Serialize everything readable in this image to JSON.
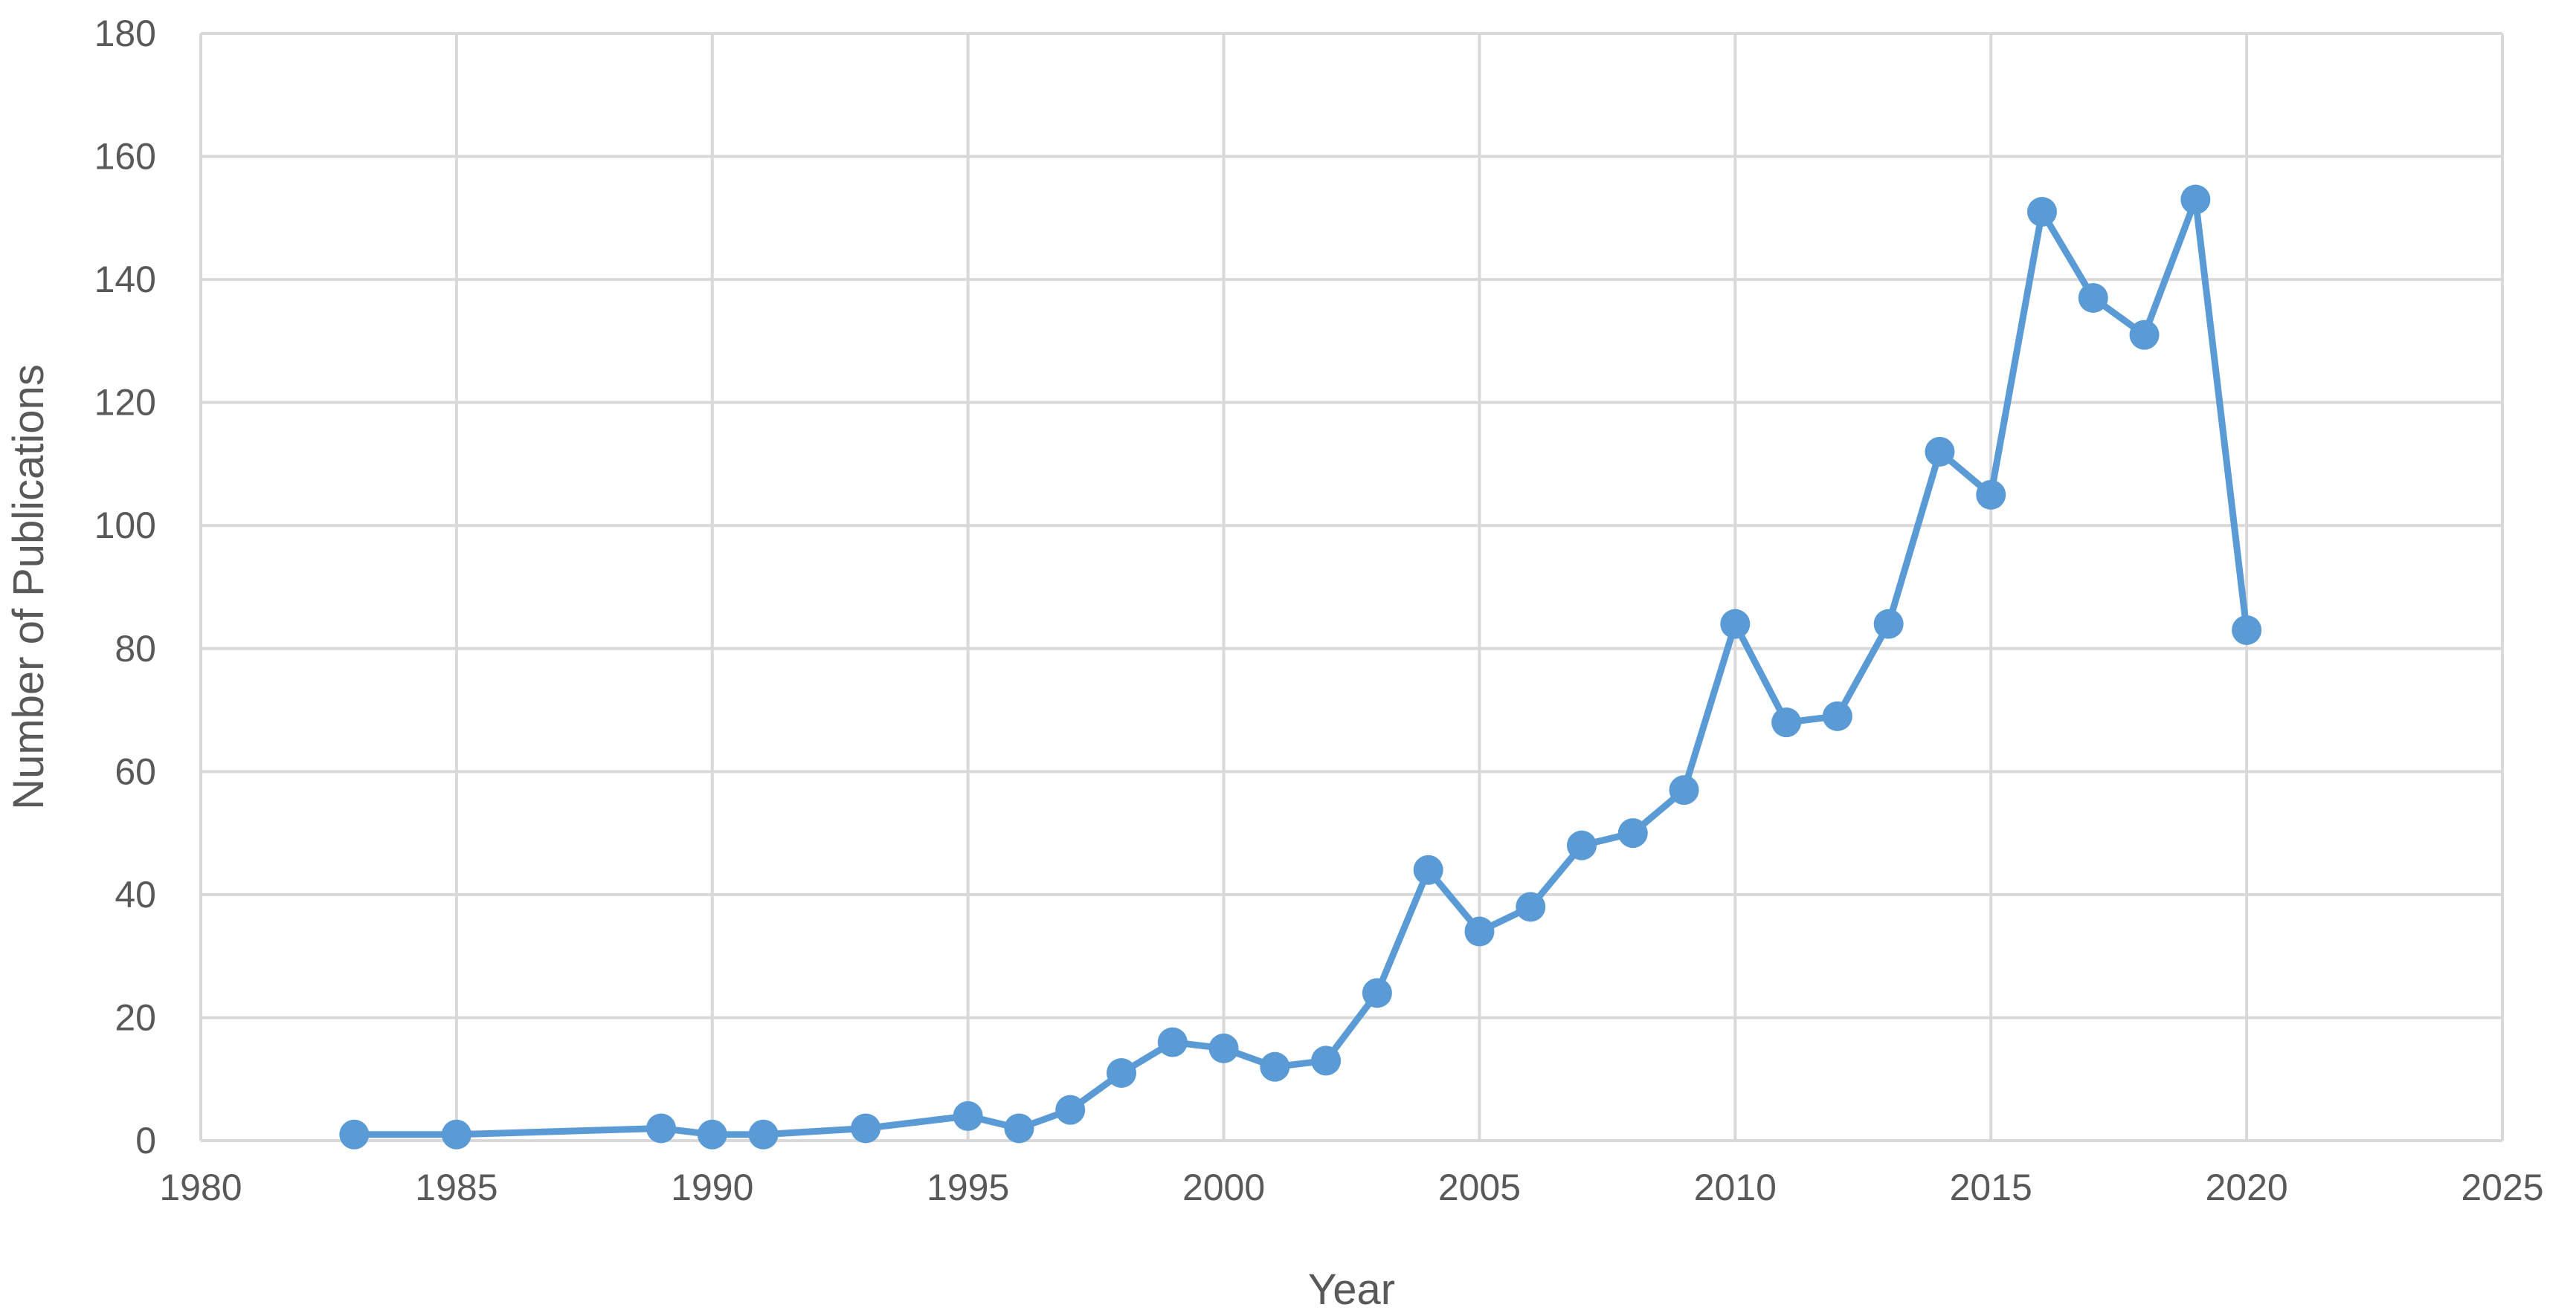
{
  "chart_data": {
    "type": "line",
    "title": "",
    "xlabel": "Year",
    "ylabel": "Number of Publications",
    "xlim": [
      1980,
      2025
    ],
    "ylim": [
      0,
      180
    ],
    "x_ticks": [
      1980,
      1985,
      1990,
      1995,
      2000,
      2005,
      2010,
      2015,
      2020,
      2025
    ],
    "y_ticks": [
      0,
      20,
      40,
      60,
      80,
      100,
      120,
      140,
      160,
      180
    ],
    "grid": true,
    "legend": "none",
    "color": "#5B9BD5",
    "series": [
      {
        "x": [
          1983,
          1985,
          1989,
          1990,
          1991,
          1993,
          1995,
          1996,
          1997,
          1998,
          1999,
          2000,
          2001,
          2002,
          2003,
          2004,
          2005,
          2006,
          2007,
          2008,
          2009,
          2010,
          2011,
          2012,
          2013,
          2014,
          2015,
          2016,
          2017,
          2018,
          2019,
          2020
        ],
        "y": [
          1,
          1,
          2,
          1,
          1,
          2,
          4,
          2,
          5,
          11,
          16,
          15,
          12,
          13,
          24,
          44,
          34,
          38,
          48,
          50,
          57,
          84,
          68,
          69,
          84,
          112,
          105,
          151,
          137,
          131,
          153,
          83
        ]
      }
    ]
  }
}
